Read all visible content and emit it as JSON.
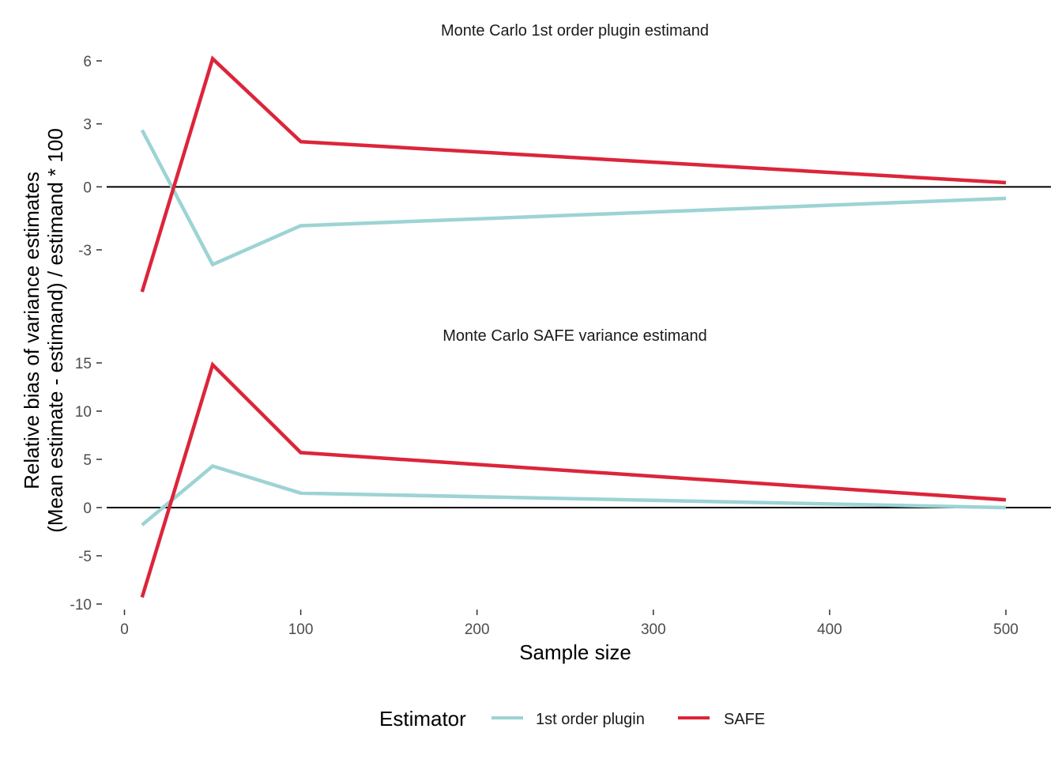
{
  "chart_data": {
    "type": "line",
    "xlabel": "Sample size",
    "ylabel_line1": "Relative bias of variance estimates",
    "ylabel_line2": "(Mean estimate - estimand) / estimand * 100",
    "x": [
      10,
      50,
      100,
      500
    ],
    "xlim": [
      0,
      500
    ],
    "x_ticks": [
      0,
      100,
      200,
      300,
      400,
      500
    ],
    "x_tick_labels": [
      "0",
      "100",
      "200",
      "300",
      "400",
      "500"
    ],
    "grid": false,
    "colors": {
      "1st order plugin": "#9DD3D4",
      "SAFE": "#DC253A"
    },
    "legend": {
      "title": "Estimator",
      "position": "bottom",
      "entries": [
        "1st order plugin",
        "SAFE"
      ]
    },
    "panels": [
      {
        "title": "Monte Carlo 1st order plugin estimand",
        "ylim": [
          -4.5,
          6.2
        ],
        "y_ticks": [
          6,
          3,
          0,
          -3
        ],
        "y_tick_labels": [
          "6",
          "3",
          "0",
          "-3"
        ],
        "hline": 0,
        "series": [
          {
            "name": "1st order plugin",
            "values": [
              2.7,
              -3.7,
              -1.85,
              -0.55
            ]
          },
          {
            "name": "SAFE",
            "values": [
              -5.0,
              6.1,
              2.15,
              0.2
            ]
          }
        ]
      },
      {
        "title": "Monte Carlo SAFE variance estimand",
        "ylim": [
          -10,
          15.5
        ],
        "y_ticks": [
          15,
          10,
          5,
          0,
          -5,
          -10
        ],
        "y_tick_labels": [
          "15",
          "10",
          "5",
          "0",
          "-5",
          "-10"
        ],
        "hline": 0,
        "series": [
          {
            "name": "1st order plugin",
            "values": [
              -1.8,
              4.3,
              1.5,
              0.0
            ]
          },
          {
            "name": "SAFE",
            "values": [
              -9.3,
              14.8,
              5.7,
              0.8
            ]
          }
        ]
      }
    ]
  }
}
